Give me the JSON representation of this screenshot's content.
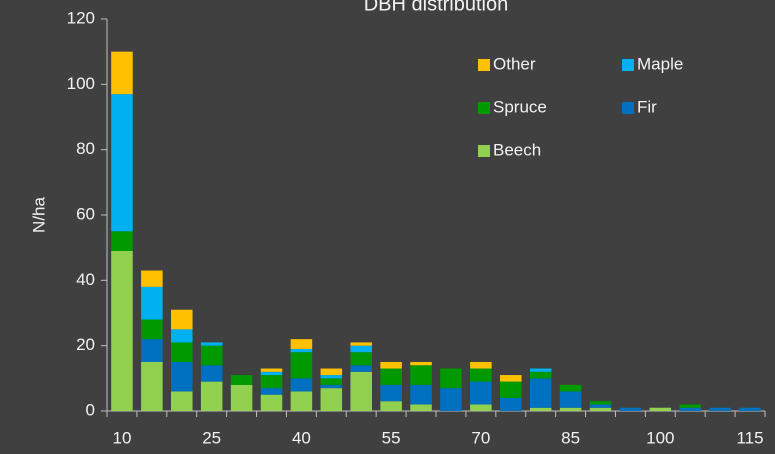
{
  "chart_data": {
    "type": "stacked_bar",
    "title": "DBH distribution",
    "y_label": "N/ha",
    "categories": [
      10,
      null,
      null,
      25,
      null,
      null,
      40,
      null,
      null,
      55,
      null,
      null,
      70,
      null,
      null,
      85,
      null,
      null,
      100,
      null,
      null,
      115
    ],
    "series": [
      {
        "name": "Beech",
        "color": "#92d050",
        "values": [
          49,
          15,
          6,
          9,
          8,
          5,
          6,
          7,
          12,
          3,
          2,
          0,
          2,
          0,
          1,
          1,
          1,
          0,
          1,
          0,
          0,
          0
        ]
      },
      {
        "name": "Fir",
        "color": "#0070c0",
        "values": [
          0,
          7,
          9,
          5,
          0,
          2,
          4,
          1,
          2,
          5,
          6,
          7,
          7,
          4,
          9,
          5,
          1,
          1,
          0,
          1,
          1,
          1
        ]
      },
      {
        "name": "Spruce",
        "color": "#009a00",
        "values": [
          6,
          6,
          6,
          6,
          3,
          4,
          8,
          2,
          4,
          5,
          6,
          6,
          4,
          5,
          2,
          2,
          1,
          0,
          0,
          1,
          0,
          0
        ]
      },
      {
        "name": "Maple",
        "color": "#00b0f0",
        "values": [
          42,
          10,
          4,
          1,
          0,
          1,
          1,
          1,
          2,
          0,
          0,
          0,
          0,
          0,
          1,
          0,
          0,
          0,
          0,
          0,
          0,
          0
        ]
      },
      {
        "name": "Other",
        "color": "#ffc000",
        "values": [
          13,
          5,
          6,
          0,
          0,
          1,
          3,
          2,
          1,
          2,
          1,
          0,
          2,
          2,
          0,
          0,
          0,
          0,
          0,
          0,
          0,
          0
        ]
      }
    ],
    "ylim": [
      0,
      120
    ],
    "yticks": [
      0,
      20,
      40,
      60,
      80,
      100,
      120
    ],
    "grid": false,
    "legend": "top-right"
  }
}
